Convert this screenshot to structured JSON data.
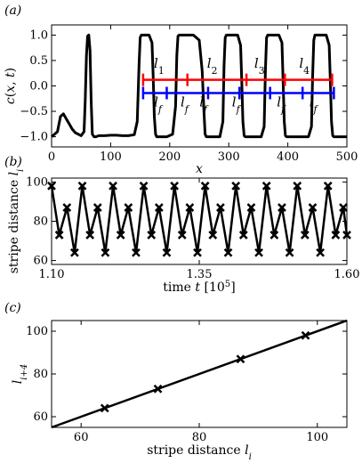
{
  "chart_data": [
    {
      "panel_label": "(a)",
      "type": "line",
      "xlabel": "x",
      "ylabel": "c(x, t)",
      "xlim": [
        0,
        500
      ],
      "ylim": [
        -1.2,
        1.2
      ],
      "xticks": [
        "0",
        "100",
        "200",
        "300",
        "400",
        "500"
      ],
      "yticks": [
        "−1.0",
        "−0.5",
        "0.0",
        "0.5",
        "1.0"
      ],
      "xtick_values": [
        0,
        100,
        200,
        300,
        400,
        500
      ],
      "ytick_values": [
        -1.0,
        -0.5,
        0.0,
        0.5,
        1.0
      ],
      "series": [
        {
          "x": [
            0,
            5,
            10,
            15,
            20,
            25,
            30,
            35,
            40,
            45,
            50,
            55,
            57,
            59,
            61,
            63,
            65,
            67,
            69,
            72,
            75,
            80,
            90,
            100,
            110,
            120,
            130,
            140,
            145,
            148,
            150,
            152,
            155,
            160,
            165,
            170,
            172,
            174,
            176,
            178,
            185,
            195,
            205,
            210,
            212,
            214,
            216,
            218,
            230,
            240,
            250,
            255,
            258,
            260,
            262,
            264,
            270,
            280,
            285,
            290,
            292,
            294,
            296,
            298,
            305,
            315,
            320,
            322,
            324,
            326,
            328,
            335,
            345,
            355,
            360,
            362,
            364,
            366,
            368,
            375,
            385,
            390,
            392,
            394,
            396,
            398,
            405,
            415,
            425,
            435,
            440,
            442,
            444,
            446,
            448,
            455,
            465,
            470,
            472,
            474,
            476,
            478,
            480,
            485,
            495,
            500
          ],
          "y": [
            -1.0,
            -0.95,
            -0.9,
            -0.6,
            -0.55,
            -0.65,
            -0.75,
            -0.85,
            -0.92,
            -0.95,
            -0.98,
            -0.9,
            -0.3,
            0.6,
            0.98,
            1.0,
            0.7,
            -0.3,
            -0.95,
            -1.0,
            -1.0,
            -0.98,
            -0.98,
            -0.97,
            -0.97,
            -0.98,
            -0.98,
            -0.96,
            -0.7,
            0.4,
            0.95,
            1.0,
            1.0,
            1.0,
            1.0,
            0.85,
            0.2,
            -0.6,
            -0.95,
            -1.0,
            -1.0,
            -1.0,
            -0.95,
            -0.4,
            0.6,
            0.98,
            1.0,
            1.0,
            1.0,
            1.0,
            0.9,
            0.3,
            -0.5,
            -0.95,
            -1.0,
            -1.0,
            -1.0,
            -1.0,
            -1.0,
            -0.7,
            0.4,
            0.95,
            1.0,
            1.0,
            1.0,
            1.0,
            0.8,
            0.1,
            -0.7,
            -0.98,
            -1.0,
            -1.0,
            -1.0,
            -1.0,
            -0.8,
            0.3,
            0.95,
            1.0,
            1.0,
            1.0,
            1.0,
            0.85,
            0.1,
            -0.7,
            -0.98,
            -1.0,
            -1.0,
            -1.0,
            -1.0,
            -1.0,
            -0.8,
            0.2,
            0.9,
            1.0,
            1.0,
            1.0,
            1.0,
            0.8,
            0.1,
            -0.7,
            -0.98,
            -1.0,
            -1.0,
            -1.0,
            -1.0,
            -1.0
          ]
        }
      ],
      "annotations": {
        "red_line": {
          "y": 0.12,
          "ticks": [
            155,
            230,
            330,
            395,
            475
          ],
          "labels": [
            "l1",
            "l2",
            "l3",
            "l4"
          ]
        },
        "blue_line": {
          "y": -0.14,
          "ticks": [
            155,
            195,
            265,
            318,
            370,
            425,
            478
          ],
          "labels": [
            "lf",
            "lf",
            "lf",
            "lf",
            "lf",
            "lf"
          ]
        },
        "red_label_x": [
          182,
          272,
          352,
          428
        ],
        "red_label_y": 0.36,
        "blue_label_x": [
          180,
          225,
          257,
          312,
          388,
          443
        ],
        "blue_label_y": -0.4
      }
    },
    {
      "panel_label": "(b)",
      "type": "line",
      "xlabel": "time t [10⁵]",
      "ylabel": "stripe distance l_i",
      "xlim": [
        1.1,
        1.6
      ],
      "ylim": [
        58,
        102
      ],
      "xticks": [
        "1.10",
        "1.35",
        "1.60"
      ],
      "yticks": [
        "60",
        "80",
        "100"
      ],
      "xtick_values": [
        1.1,
        1.35,
        1.6
      ],
      "ytick_values": [
        60,
        80,
        100
      ],
      "series": [
        {
          "x": [
            1.1,
            1.113,
            1.126,
            1.139,
            1.152,
            1.165,
            1.178,
            1.191,
            1.204,
            1.217,
            1.23,
            1.243,
            1.256,
            1.269,
            1.282,
            1.295,
            1.308,
            1.321,
            1.334,
            1.347,
            1.36,
            1.373,
            1.386,
            1.399,
            1.412,
            1.425,
            1.438,
            1.451,
            1.464,
            1.477,
            1.49,
            1.503,
            1.516,
            1.529,
            1.542,
            1.555,
            1.568,
            1.581,
            1.594,
            1.6
          ],
          "y": [
            98,
            73,
            87,
            64,
            98,
            73,
            87,
            64,
            98,
            73,
            87,
            64,
            98,
            73,
            87,
            64,
            98,
            73,
            87,
            64,
            98,
            73,
            87,
            64,
            98,
            73,
            87,
            64,
            98,
            73,
            87,
            64,
            98,
            73,
            87,
            64,
            98,
            73,
            87,
            73
          ]
        }
      ]
    },
    {
      "panel_label": "(c)",
      "type": "scatter",
      "xlabel": "stripe distance l_i",
      "ylabel": "l_{i+4}",
      "xlim": [
        55,
        105
      ],
      "ylim": [
        55,
        105
      ],
      "xticks": [
        "60",
        "80",
        "100"
      ],
      "yticks": [
        "60",
        "80",
        "100"
      ],
      "xtick_values": [
        60,
        80,
        100
      ],
      "ytick_values": [
        60,
        80,
        100
      ],
      "points": {
        "x": [
          64,
          73,
          87,
          98
        ],
        "y": [
          64,
          73,
          87,
          98
        ]
      },
      "line": {
        "x": [
          55,
          105
        ],
        "y": [
          55,
          105
        ]
      }
    }
  ]
}
